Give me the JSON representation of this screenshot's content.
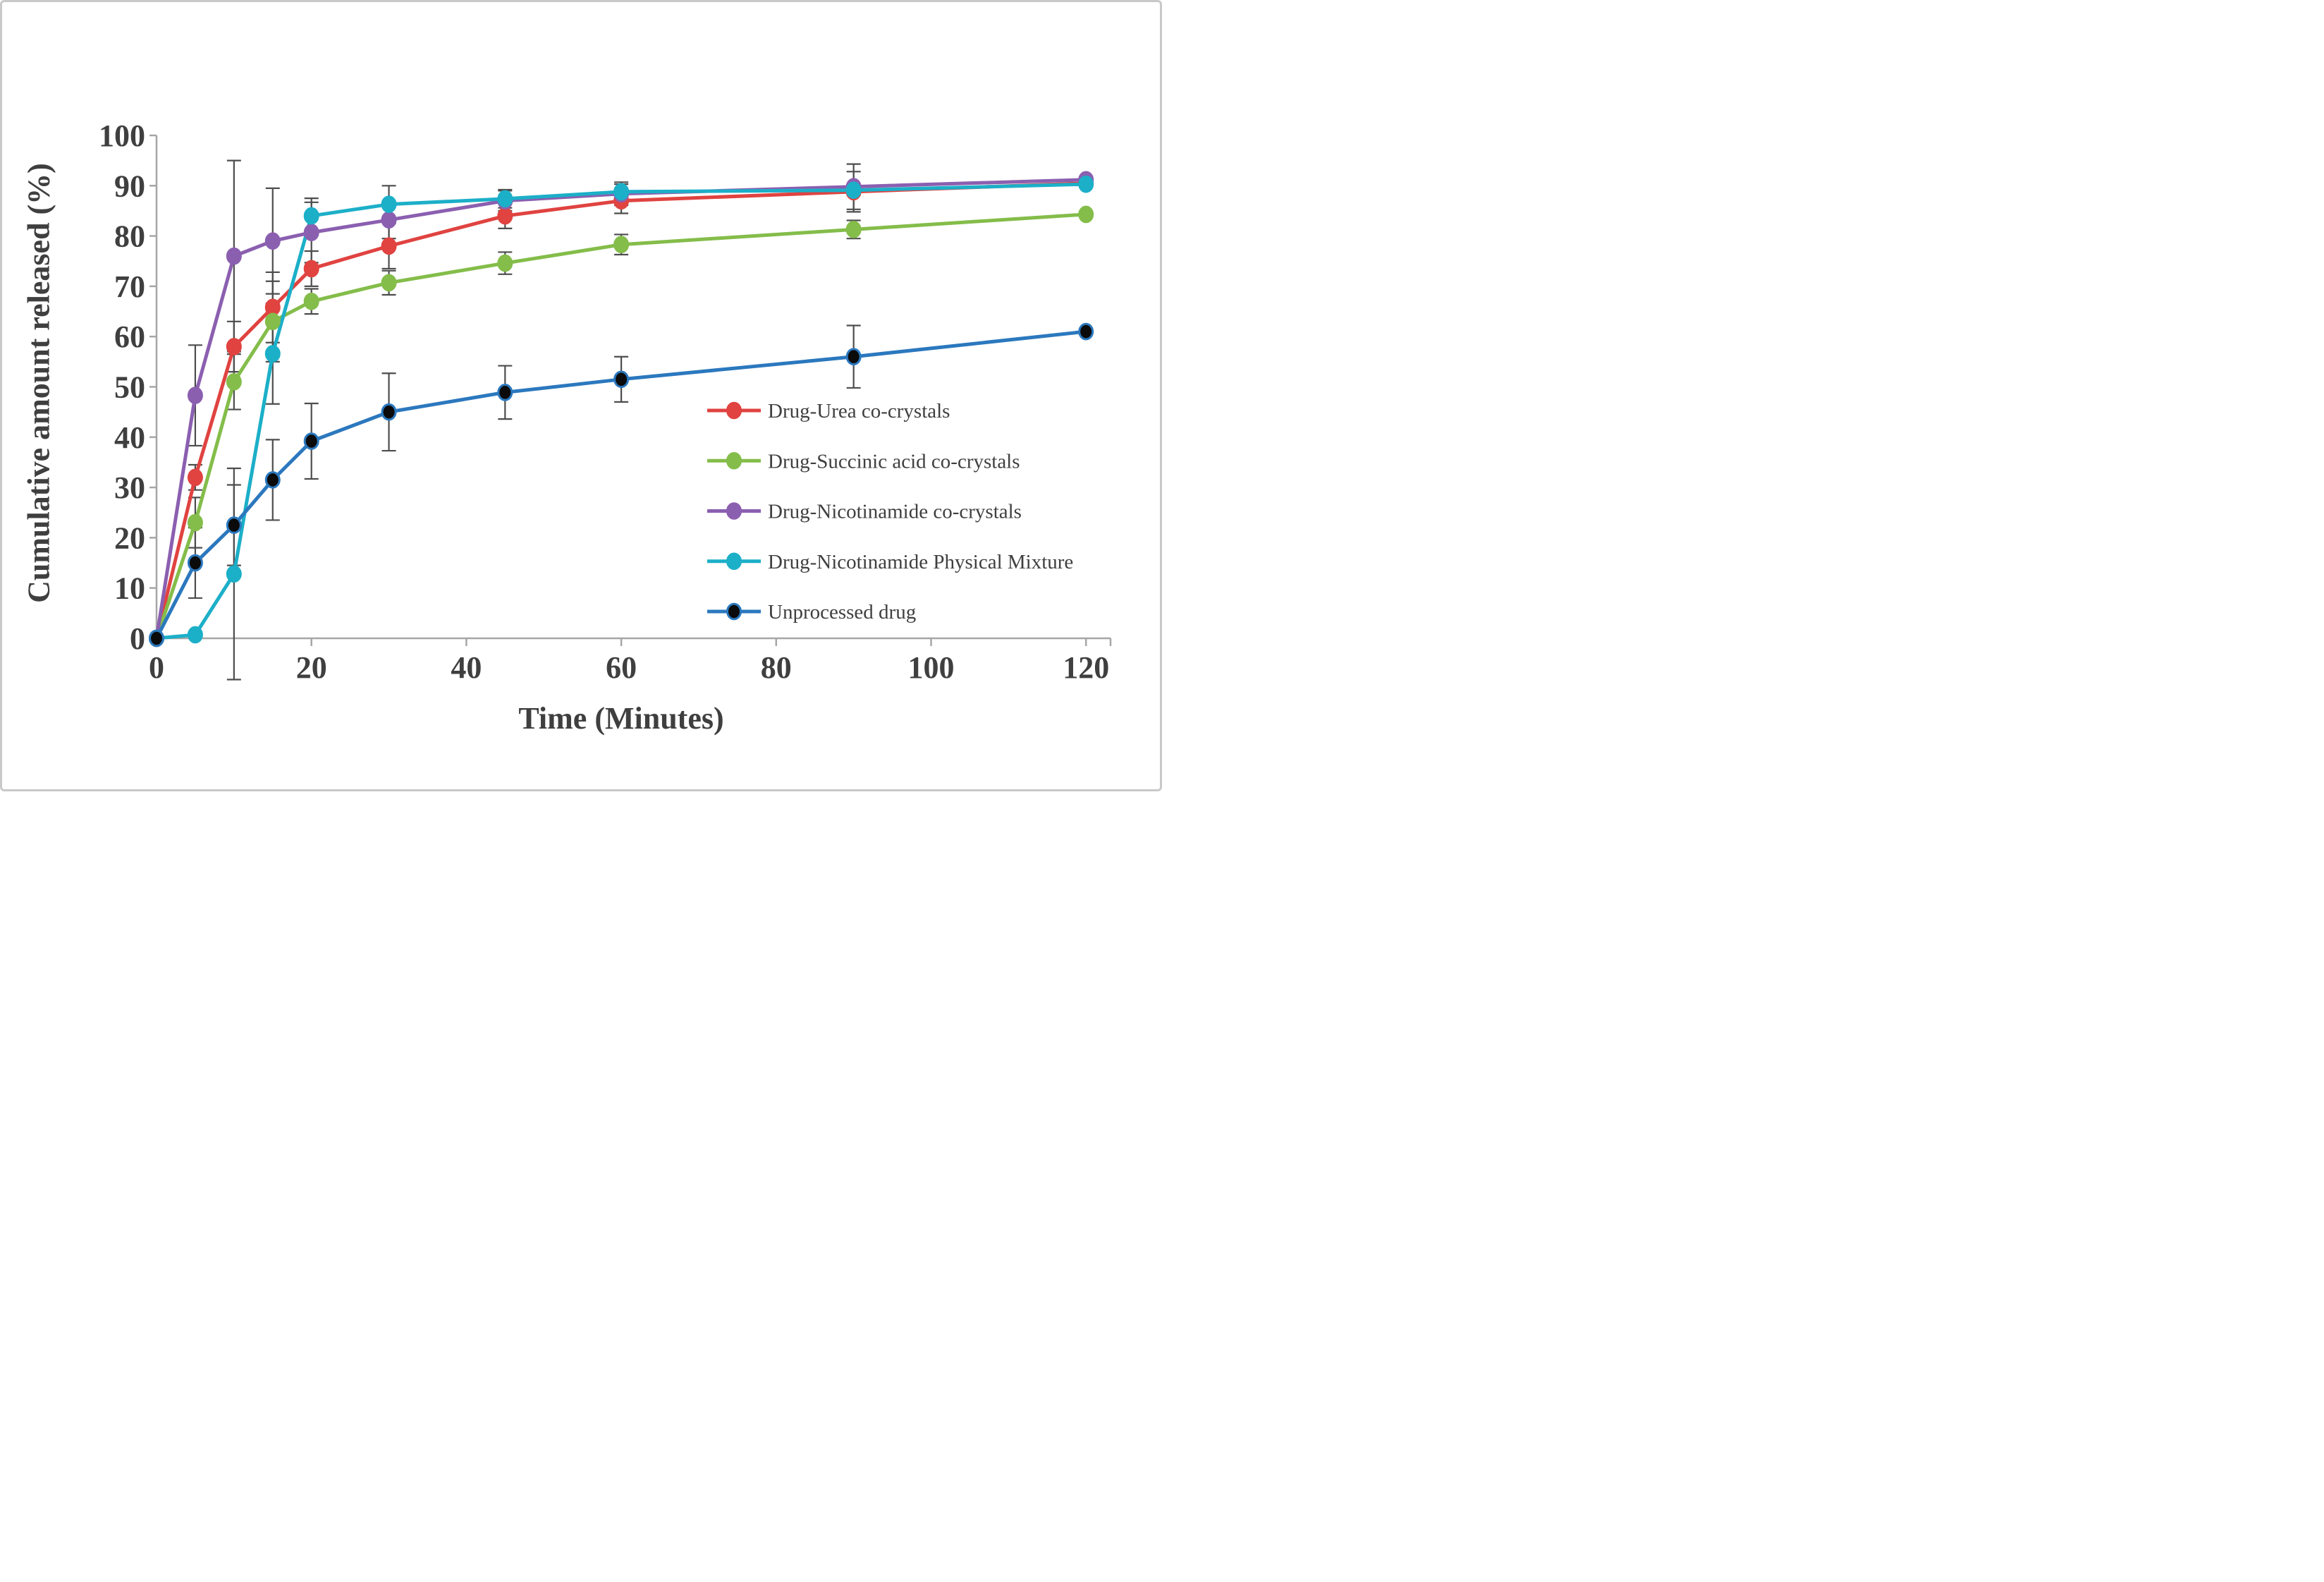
{
  "figure": {
    "background": "#ffffff",
    "border_color": "#c9c9c9",
    "axis_color": "#a6a6a6",
    "error_bar_color": "#4d4d4d",
    "text_color": "#3f3f3f"
  },
  "chart_data": {
    "type": "line",
    "title": "",
    "xlabel": "Time (Minutes)",
    "ylabel": "Cumulative amount released (%)",
    "x": [
      0,
      5,
      10,
      15,
      20,
      30,
      45,
      60,
      90,
      120
    ],
    "x_ticks": [
      0,
      20,
      40,
      60,
      80,
      100,
      120
    ],
    "y_ticks": [
      0,
      10,
      20,
      30,
      40,
      50,
      60,
      70,
      80,
      90,
      100
    ],
    "xlim": [
      0,
      123
    ],
    "ylim": [
      0,
      100
    ],
    "grid": false,
    "legend_position": "right-middle",
    "markers": "circle",
    "error_bars": true,
    "series": [
      {
        "name": "Drug-Urea co-crystals",
        "color": "#e04340",
        "marker_fill": "#e04340",
        "marker_stroke": "#e04340",
        "values": [
          0,
          32,
          58,
          65.8,
          73.5,
          78,
          84,
          87,
          88.8,
          90.5
        ],
        "errors": [
          0,
          2.5,
          5,
          7,
          3.5,
          4.5,
          2.5,
          2.5,
          4,
          0
        ]
      },
      {
        "name": "Drug-Succinic acid co-crystals",
        "color": "#84bd4a",
        "marker_fill": "#84bd4a",
        "marker_stroke": "#84bd4a",
        "values": [
          0,
          23,
          51,
          63,
          67,
          70.7,
          74.6,
          78.3,
          81.3,
          84.3
        ],
        "errors": [
          0,
          5,
          5.5,
          8,
          2.5,
          2.4,
          2.2,
          2,
          1.8,
          0
        ]
      },
      {
        "name": "Drug-Nicotinamide co-crystals",
        "color": "#8b5fb0",
        "marker_fill": "#8b5fb0",
        "marker_stroke": "#8b5fb0",
        "values": [
          0,
          48.3,
          76,
          79,
          80.7,
          83.2,
          87,
          88.4,
          89.8,
          91.2
        ],
        "errors": [
          0,
          10,
          19,
          10.5,
          6,
          3.7,
          2,
          2.3,
          4.5,
          0
        ]
      },
      {
        "name": "Drug-Nicotinamide Physical Mixture",
        "color": "#1cafc8",
        "marker_fill": "#1cafc8",
        "marker_stroke": "#1cafc8",
        "values": [
          0,
          0.7,
          12.8,
          56.6,
          84,
          86.3,
          87.4,
          88.8,
          89.1,
          90.3
        ],
        "errors": [
          0,
          0.5,
          21,
          10,
          3.5,
          3.7,
          1.8,
          1.5,
          1,
          0
        ]
      },
      {
        "name": "Unprocessed drug",
        "color": "#2b78be",
        "marker_fill": "#0b0b0b",
        "marker_stroke": "#2b78be",
        "values": [
          0,
          15,
          22.5,
          31.5,
          39.2,
          45,
          48.9,
          51.5,
          56,
          61
        ],
        "errors": [
          0,
          7,
          8,
          8,
          7.5,
          7.7,
          5.3,
          4.5,
          6.2,
          0
        ]
      }
    ]
  }
}
